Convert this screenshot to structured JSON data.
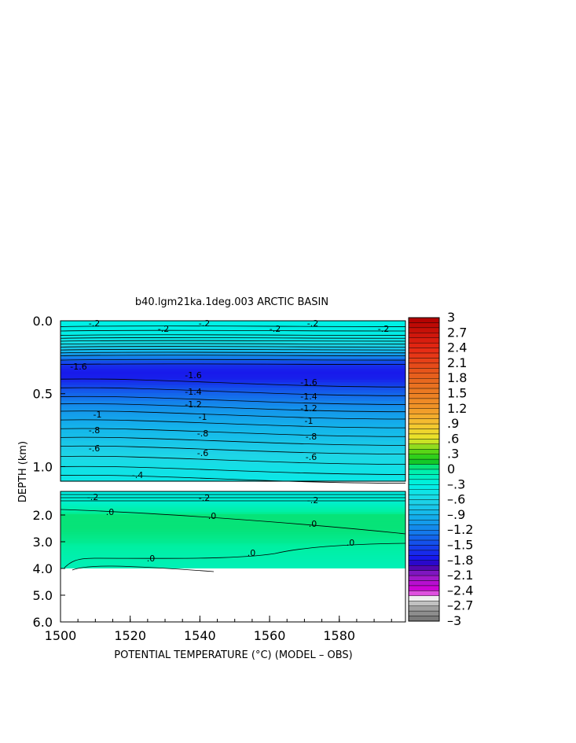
{
  "chart_data": {
    "type": "heatmap",
    "title": "b40.lgm21ka.1deg.003 ARCTIC BASIN",
    "xlabel": "POTENTIAL TEMPERATURE (°C) (MODEL – OBS)",
    "ylabel": "DEPTH (km)",
    "x_ticks": [
      "1500",
      "1520",
      "1540",
      "1560",
      "1580"
    ],
    "y_ticks_upper": [
      "0.0",
      "0.5",
      "1.0"
    ],
    "y_ticks_lower": [
      "2.0",
      "3.0",
      "4.0",
      "5.0",
      "6.0"
    ],
    "xlim": [
      1500,
      1599
    ],
    "ylim_upper": [
      0.0,
      1.1
    ],
    "ylim_lower": [
      1.1,
      6.0
    ],
    "colorbar": {
      "ticks": [
        "3",
        "2.7",
        "2.4",
        "2.1",
        "1.8",
        "1.5",
        "1.2",
        ".9",
        ".6",
        ".3",
        "0",
        "–.3",
        "–.6",
        "–.9",
        "–1.2",
        "–1.5",
        "–1.8",
        "–2.1",
        "–2.4",
        "–2.7",
        "–3"
      ],
      "range": [
        -3,
        3
      ]
    },
    "upper_panel_profile": {
      "depth_km": [
        0.0,
        0.05,
        0.1,
        0.15,
        0.2,
        0.25,
        0.3,
        0.35,
        0.4,
        0.45,
        0.5,
        0.6,
        0.7,
        0.8,
        0.9,
        1.0,
        1.1
      ],
      "anomaly": [
        -0.3,
        -0.3,
        -0.35,
        -0.5,
        -0.8,
        -1.2,
        -1.6,
        -1.75,
        -1.7,
        -1.5,
        -1.35,
        -1.1,
        -0.95,
        -0.8,
        -0.65,
        -0.5,
        -0.4
      ]
    },
    "lower_panel_profile": {
      "depth_km": [
        1.1,
        1.5,
        2.0,
        2.5,
        3.0,
        3.5,
        4.0
      ],
      "anomaly": [
        -0.3,
        -0.2,
        0.05,
        0.05,
        0.02,
        -0.05,
        -0.1
      ]
    },
    "contour_labels_upper": [
      "-.2",
      "-.2",
      "-.2",
      "-.2",
      "-.2",
      "-.2",
      "-1.6",
      "-1.6",
      "-1.6",
      "-1.4",
      "-1.4",
      "-1.2",
      "-1.2",
      "-1",
      "-1",
      "-1",
      "-.8",
      "-.8",
      "-.8",
      "-.6",
      "-.6",
      "-.6",
      "-.4"
    ],
    "contour_labels_lower": [
      "-.2",
      "-.2",
      "-.2",
      ".0",
      ".0",
      ".0",
      ".0",
      ".0",
      ".0"
    ]
  }
}
